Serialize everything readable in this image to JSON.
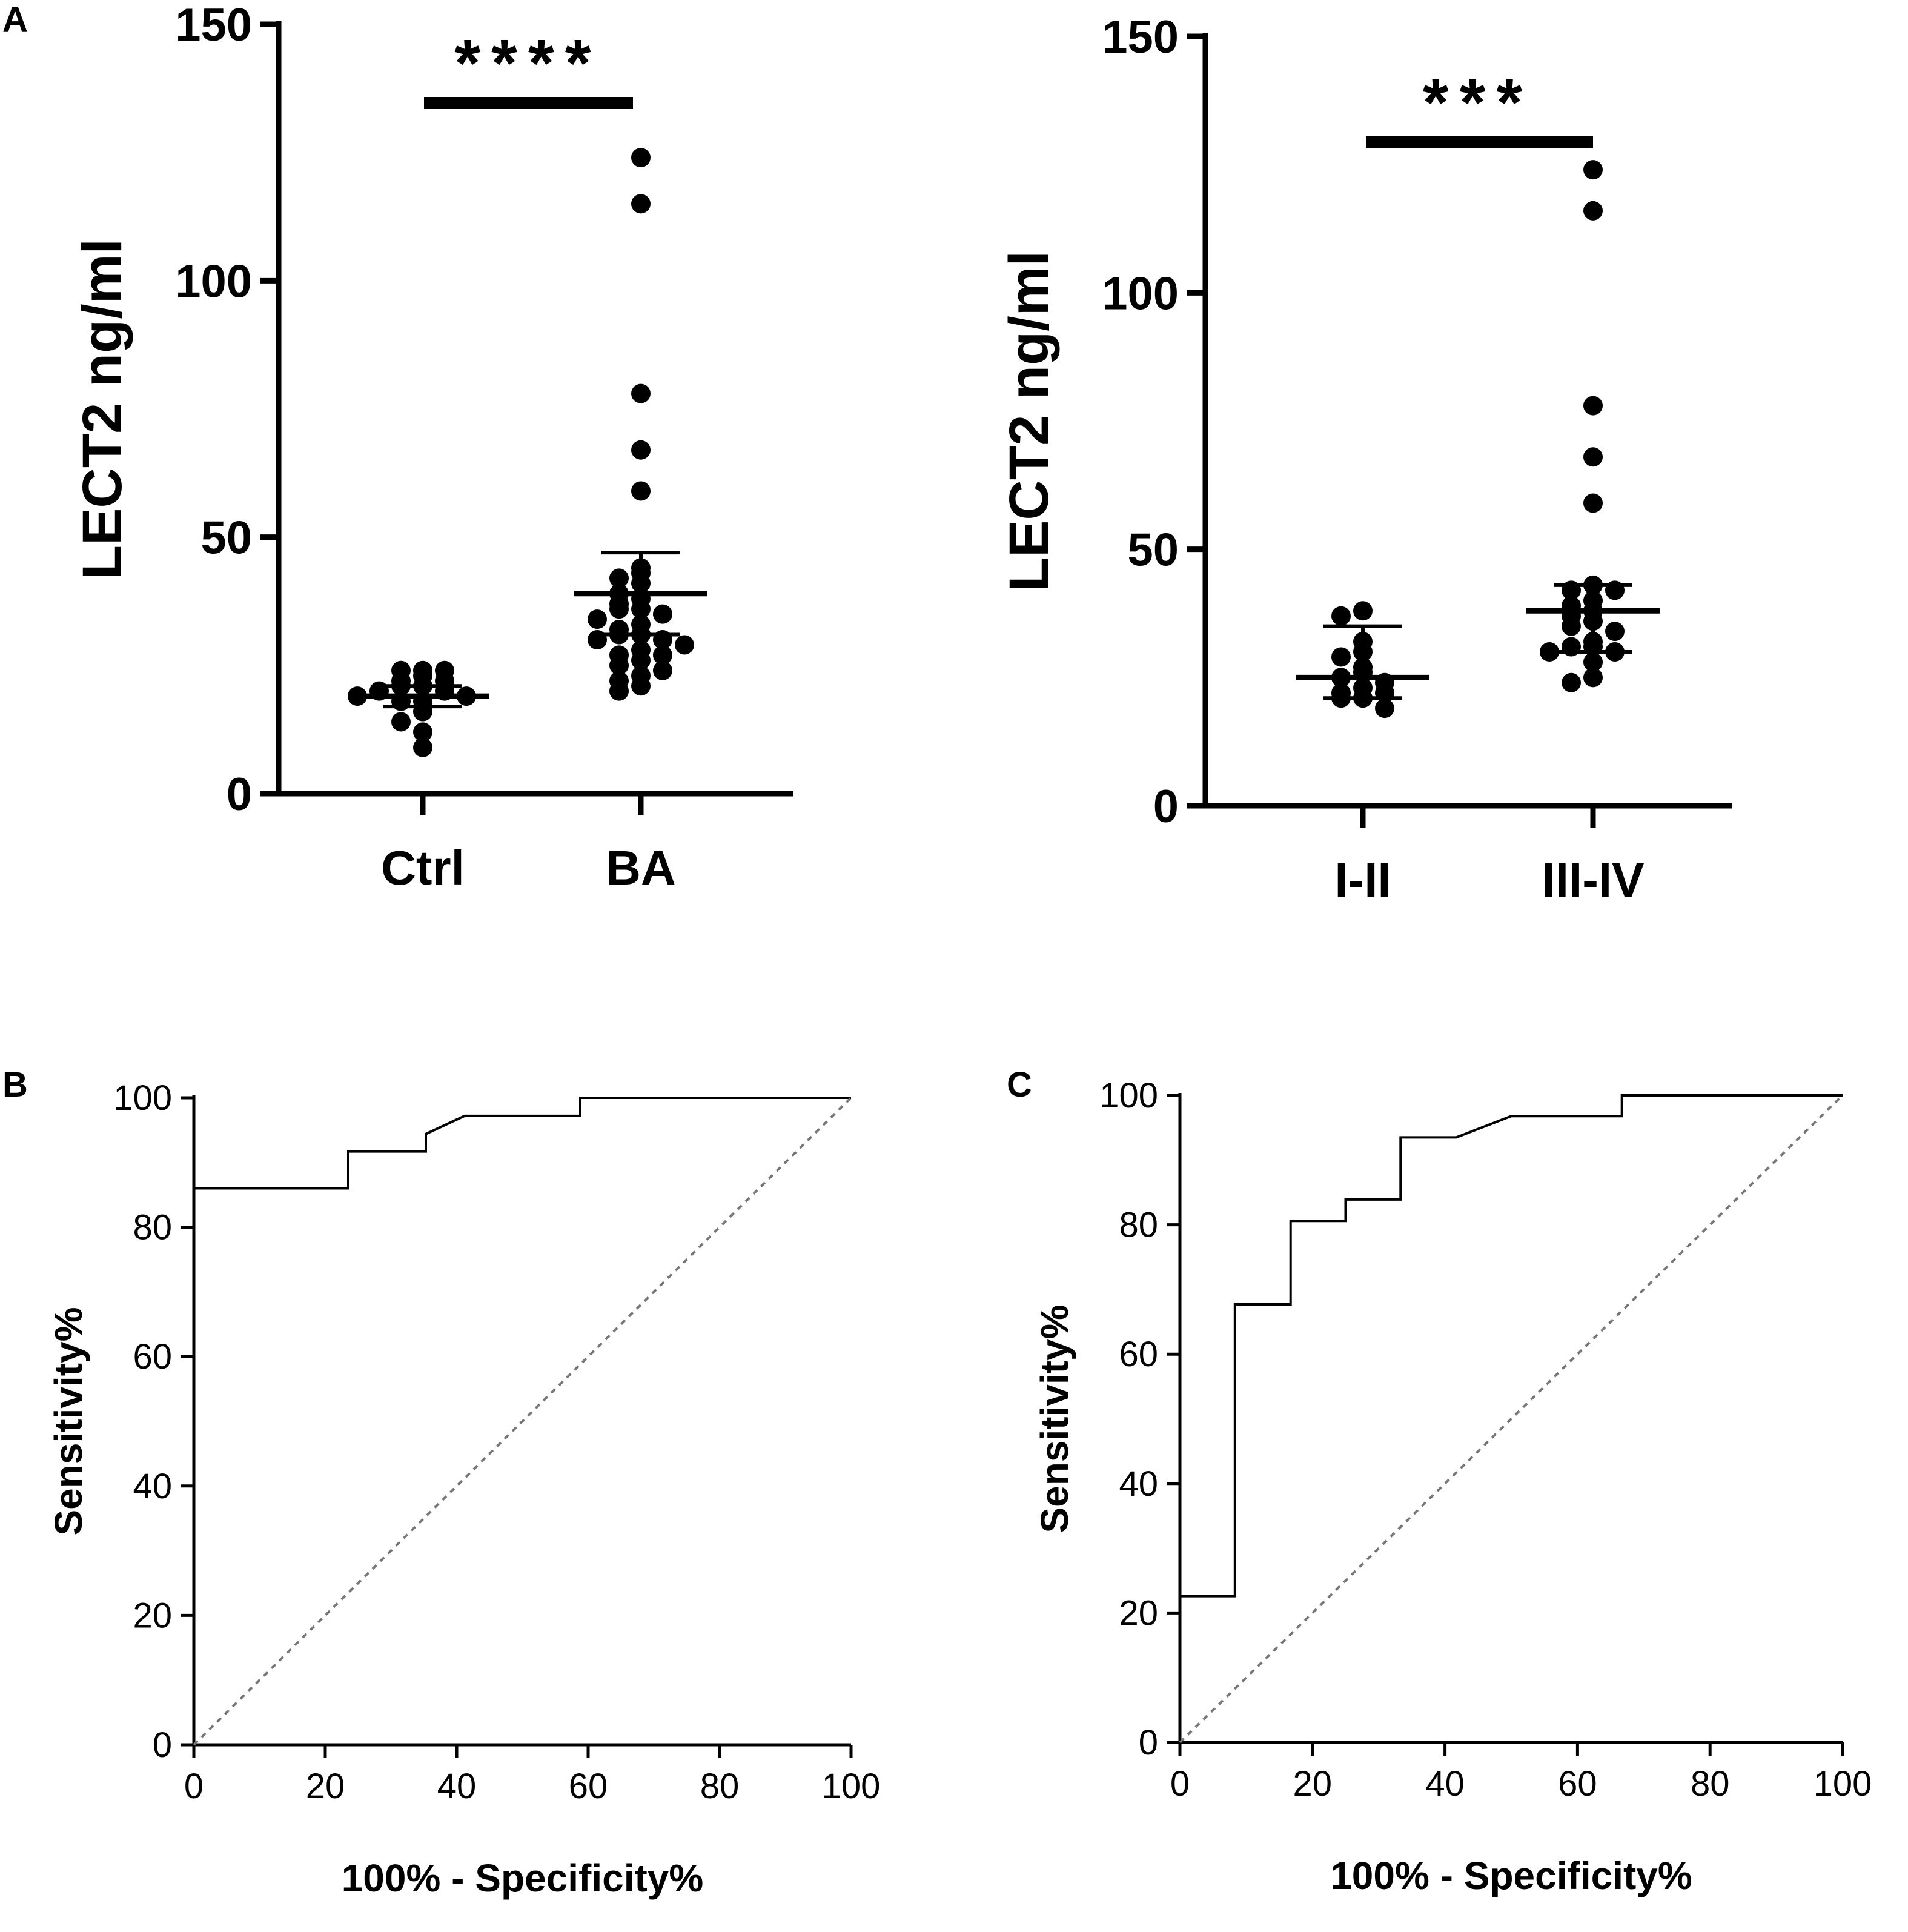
{
  "panel_letters": {
    "a": "A",
    "b": "B",
    "c": "C"
  },
  "chart_data": [
    {
      "type": "scatter",
      "panel": "A-left",
      "ylabel": "LECT2 ng/ml",
      "ylim": [
        0,
        150
      ],
      "yticks": [
        "0",
        "50",
        "100",
        "150"
      ],
      "categories": [
        "Ctrl",
        "BA"
      ],
      "significance": "****",
      "groups": [
        {
          "name": "Ctrl",
          "mean": 19,
          "error": [
            17,
            21
          ],
          "values": [
            24,
            24,
            24,
            23,
            22,
            22,
            21,
            21,
            20,
            20,
            19,
            19,
            18,
            18,
            16,
            14,
            12,
            9
          ]
        },
        {
          "name": "BA",
          "mean": 39,
          "error": [
            31,
            47
          ],
          "values": [
            124,
            115,
            78,
            67,
            59,
            44,
            43,
            42,
            41,
            39,
            38,
            37,
            36,
            36,
            35,
            34,
            33,
            32,
            31,
            31,
            30,
            30,
            29,
            28,
            27,
            27,
            26,
            25,
            24,
            23,
            22,
            21,
            20
          ]
        }
      ]
    },
    {
      "type": "scatter",
      "panel": "A-right",
      "ylabel": "LECT2 ng/ml",
      "ylim": [
        0,
        150
      ],
      "yticks": [
        "0",
        "50",
        "100",
        "150"
      ],
      "categories": [
        "I-II",
        "III-IV"
      ],
      "significance": "***",
      "groups": [
        {
          "name": "I-II",
          "mean": 25,
          "error": [
            21,
            35
          ],
          "values": [
            38,
            37,
            32,
            30,
            29,
            27,
            26,
            25,
            24,
            23,
            22,
            22,
            21,
            21,
            19
          ]
        },
        {
          "name": "III-IV",
          "mean": 38,
          "error": [
            30,
            43
          ],
          "values": [
            124,
            116,
            78,
            68,
            59,
            43,
            42,
            42,
            40,
            39,
            38,
            37,
            36,
            35,
            34,
            32,
            31,
            31,
            30,
            30,
            28,
            25,
            24
          ]
        }
      ]
    },
    {
      "type": "line",
      "panel": "B",
      "xlabel": "100% - Specificity%",
      "ylabel": "Sensitivity%",
      "xlim": [
        0,
        100
      ],
      "ylim": [
        0,
        100
      ],
      "xticks": [
        "0",
        "20",
        "40",
        "60",
        "80",
        "100"
      ],
      "yticks": [
        "0",
        "20",
        "40",
        "60",
        "80",
        "100"
      ],
      "series": [
        {
          "name": "ROC",
          "x": [
            0,
            23.5,
            23.5,
            35.3,
            35.3,
            41.2,
            41.2,
            58.8,
            58.8,
            100
          ],
          "y": [
            86,
            86,
            91.7,
            91.7,
            94.4,
            97.2,
            97.2,
            97.2,
            100,
            100
          ]
        },
        {
          "name": "Reference",
          "x": [
            0,
            100
          ],
          "y": [
            0,
            100
          ]
        }
      ]
    },
    {
      "type": "line",
      "panel": "C",
      "xlabel": "100% - Specificity%",
      "ylabel": "Sensitivity%",
      "xlim": [
        0,
        100
      ],
      "ylim": [
        0,
        100
      ],
      "xticks": [
        "0",
        "20",
        "40",
        "60",
        "80",
        "100"
      ],
      "yticks": [
        "0",
        "20",
        "40",
        "60",
        "80",
        "100"
      ],
      "series": [
        {
          "name": "ROC",
          "x": [
            0,
            8.3,
            8.3,
            16.7,
            16.7,
            25,
            25,
            33.3,
            33.3,
            41.7,
            50,
            50,
            66.7,
            66.7,
            100
          ],
          "y": [
            22.6,
            22.6,
            67.7,
            67.7,
            80.6,
            80.6,
            83.9,
            83.9,
            93.5,
            93.5,
            96.8,
            96.8,
            96.8,
            100,
            100
          ]
        },
        {
          "name": "Reference",
          "x": [
            0,
            100
          ],
          "y": [
            0,
            100
          ]
        }
      ]
    }
  ]
}
